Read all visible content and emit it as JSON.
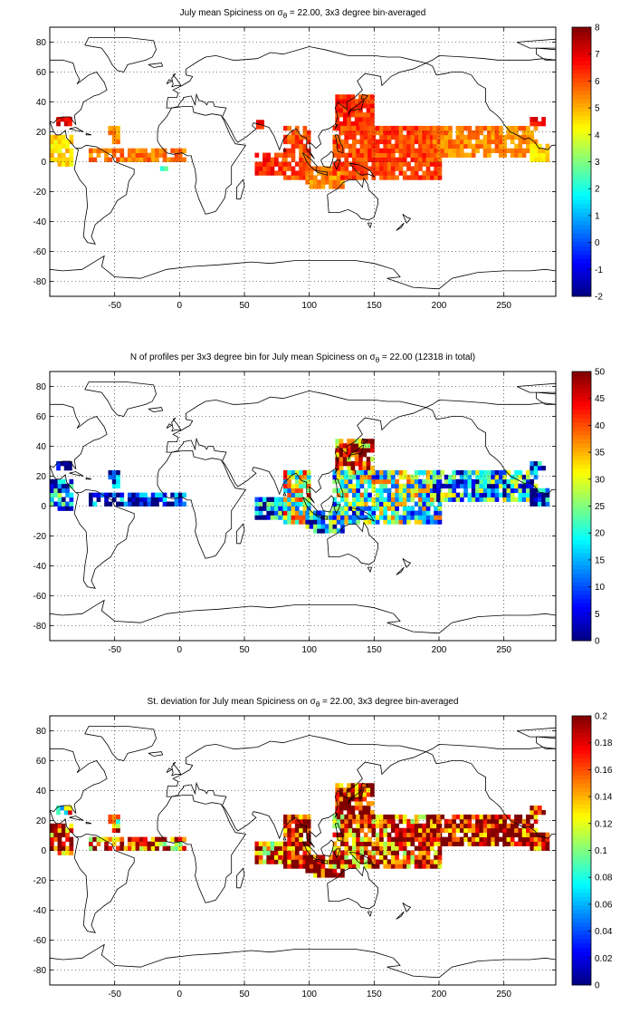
{
  "chart_data": [
    {
      "type": "heatmap",
      "title_prefix": "July mean Spiciness on ",
      "title_sigma": "σ",
      "title_sub": "θ",
      "title_suffix": " = 22.00, 3x3 degree bin-averaged",
      "xlabel": "",
      "ylabel": "",
      "xlim": [
        -100,
        290
      ],
      "ylim": [
        -90,
        90
      ],
      "xticks": [
        -50,
        0,
        50,
        100,
        150,
        200,
        250
      ],
      "yticks": [
        -80,
        -60,
        -40,
        -20,
        0,
        20,
        40,
        60,
        80
      ],
      "grid": true,
      "colorbar": {
        "min": -2,
        "max": 8,
        "ticks": [
          -2,
          -1,
          0,
          1,
          2,
          3,
          4,
          5,
          6,
          7,
          8
        ],
        "colormap": "jet"
      },
      "regions": [
        {
          "x": [
            -100,
            -82
          ],
          "y": [
            -3,
            18
          ],
          "value": 4.6
        },
        {
          "x": [
            -95,
            -85
          ],
          "y": [
            24,
            30
          ],
          "value": 6.8
        },
        {
          "x": [
            -70,
            5
          ],
          "y": [
            0,
            9
          ],
          "value": 5.6
        },
        {
          "x": [
            -55,
            -48
          ],
          "y": [
            12,
            24
          ],
          "value": 5.5
        },
        {
          "x": [
            -15,
            -9
          ],
          "y": [
            -6,
            -3
          ],
          "value": 2.6
        },
        {
          "x": [
            59,
            64
          ],
          "y": [
            22,
            27
          ],
          "value": 6.6
        },
        {
          "x": [
            58,
            80
          ],
          "y": [
            -9,
            6
          ],
          "value": 6.4
        },
        {
          "x": [
            80,
            100
          ],
          "y": [
            -12,
            22
          ],
          "value": 6.0
        },
        {
          "x": [
            97,
            125
          ],
          "y": [
            -18,
            -3
          ],
          "value": 5.4
        },
        {
          "x": [
            120,
            148
          ],
          "y": [
            18,
            45
          ],
          "value": 6.3
        },
        {
          "x": [
            118,
            200
          ],
          "y": [
            -12,
            22
          ],
          "value": 6.1
        },
        {
          "x": [
            195,
            275
          ],
          "y": [
            3,
            23
          ],
          "value": 5.5
        },
        {
          "x": [
            270,
            285
          ],
          "y": [
            0,
            12
          ],
          "value": 4.5
        },
        {
          "x": [
            270,
            282
          ],
          "y": [
            24,
            30
          ],
          "value": 6.8
        }
      ]
    },
    {
      "type": "heatmap",
      "title_prefix": "N of profiles per 3x3 degree bin for July mean Spiciness on ",
      "title_sigma": "σ",
      "title_sub": "θ",
      "title_suffix": " = 22.00 (12318 in total)",
      "xlabel": "",
      "ylabel": "",
      "xlim": [
        -100,
        290
      ],
      "ylim": [
        -90,
        90
      ],
      "xticks": [
        -50,
        0,
        50,
        100,
        150,
        200,
        250
      ],
      "yticks": [
        -80,
        -60,
        -40,
        -20,
        0,
        20,
        40,
        60,
        80
      ],
      "grid": true,
      "colorbar": {
        "min": 0,
        "max": 50,
        "ticks": [
          0,
          5,
          10,
          15,
          20,
          25,
          30,
          35,
          40,
          45,
          50
        ],
        "colormap": "jet"
      },
      "regions": [
        {
          "x": [
            -100,
            -84
          ],
          "y": [
            -3,
            18
          ],
          "value": 14
        },
        {
          "x": [
            -95,
            -85
          ],
          "y": [
            24,
            30
          ],
          "value": 4
        },
        {
          "x": [
            -70,
            5
          ],
          "y": [
            0,
            9
          ],
          "value": 4
        },
        {
          "x": [
            -55,
            -48
          ],
          "y": [
            12,
            24
          ],
          "value": 3
        },
        {
          "x": [
            58,
            80
          ],
          "y": [
            -9,
            6
          ],
          "value": 11
        },
        {
          "x": [
            80,
            100
          ],
          "y": [
            -12,
            22
          ],
          "value": 28
        },
        {
          "x": [
            97,
            125
          ],
          "y": [
            -18,
            -3
          ],
          "value": 14
        },
        {
          "x": [
            120,
            148
          ],
          "y": [
            18,
            45
          ],
          "value": 42
        },
        {
          "x": [
            118,
            200
          ],
          "y": [
            -12,
            22
          ],
          "value": 22
        },
        {
          "x": [
            195,
            275
          ],
          "y": [
            3,
            23
          ],
          "value": 16
        },
        {
          "x": [
            270,
            285
          ],
          "y": [
            0,
            12
          ],
          "value": 5
        },
        {
          "x": [
            270,
            282
          ],
          "y": [
            24,
            30
          ],
          "value": 6
        }
      ]
    },
    {
      "type": "heatmap",
      "title_prefix": "St. deviation for July mean Spiciness on ",
      "title_sigma": "σ",
      "title_sub": "θ",
      "title_suffix": " = 22.00, 3x3 degree bin-averaged",
      "xlabel": "",
      "ylabel": "",
      "xlim": [
        -100,
        290
      ],
      "ylim": [
        -90,
        90
      ],
      "xticks": [
        -50,
        0,
        50,
        100,
        150,
        200,
        250
      ],
      "yticks": [
        -80,
        -60,
        -40,
        -20,
        0,
        20,
        40,
        60,
        80
      ],
      "grid": true,
      "colorbar": {
        "min": 0,
        "max": 0.2,
        "ticks": [
          0,
          0.02,
          0.04,
          0.06,
          0.08,
          0.1,
          0.12,
          0.14,
          0.16,
          0.18,
          0.2
        ],
        "colormap": "jet"
      },
      "regions": [
        {
          "x": [
            -100,
            -84
          ],
          "y": [
            -3,
            18
          ],
          "value": 0.18
        },
        {
          "x": [
            -95,
            -85
          ],
          "y": [
            24,
            30
          ],
          "value": 0.12
        },
        {
          "x": [
            -70,
            5
          ],
          "y": [
            0,
            9
          ],
          "value": 0.16
        },
        {
          "x": [
            -55,
            -48
          ],
          "y": [
            12,
            24
          ],
          "value": 0.15
        },
        {
          "x": [
            58,
            80
          ],
          "y": [
            -9,
            6
          ],
          "value": 0.16
        },
        {
          "x": [
            80,
            100
          ],
          "y": [
            -12,
            22
          ],
          "value": 0.19
        },
        {
          "x": [
            97,
            125
          ],
          "y": [
            -18,
            -3
          ],
          "value": 0.18
        },
        {
          "x": [
            120,
            148
          ],
          "y": [
            18,
            45
          ],
          "value": 0.19
        },
        {
          "x": [
            118,
            200
          ],
          "y": [
            -12,
            22
          ],
          "value": 0.17
        },
        {
          "x": [
            195,
            275
          ],
          "y": [
            3,
            23
          ],
          "value": 0.19
        },
        {
          "x": [
            270,
            285
          ],
          "y": [
            0,
            12
          ],
          "value": 0.18
        },
        {
          "x": [
            270,
            282
          ],
          "y": [
            24,
            30
          ],
          "value": 0.16
        }
      ]
    }
  ]
}
